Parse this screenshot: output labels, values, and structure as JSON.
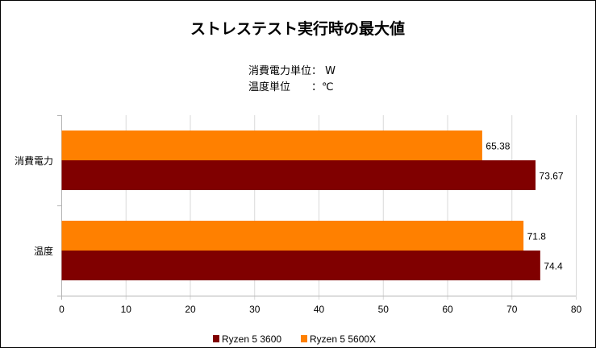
{
  "chart_data": {
    "type": "bar",
    "orientation": "horizontal",
    "title": "ストレステスト実行時の最大値",
    "subtitle_lines": [
      "消費電力単位： W",
      "温度単位　　：℃"
    ],
    "categories": [
      "消費電力",
      "温度"
    ],
    "series": [
      {
        "name": "Ryzen 5 3600",
        "color": "#800000",
        "values": [
          73.67,
          74.4
        ],
        "labels": [
          "73.67",
          "74.4"
        ]
      },
      {
        "name": "Ryzen 5 5600X",
        "color": "#ff8000",
        "values": [
          65.38,
          71.8
        ],
        "labels": [
          "65.38",
          "71.8"
        ]
      }
    ],
    "xlim": [
      0,
      80
    ],
    "xticks": [
      "0",
      "10",
      "20",
      "30",
      "40",
      "50",
      "60",
      "70",
      "80"
    ],
    "grid": true,
    "legend": "bottom"
  }
}
